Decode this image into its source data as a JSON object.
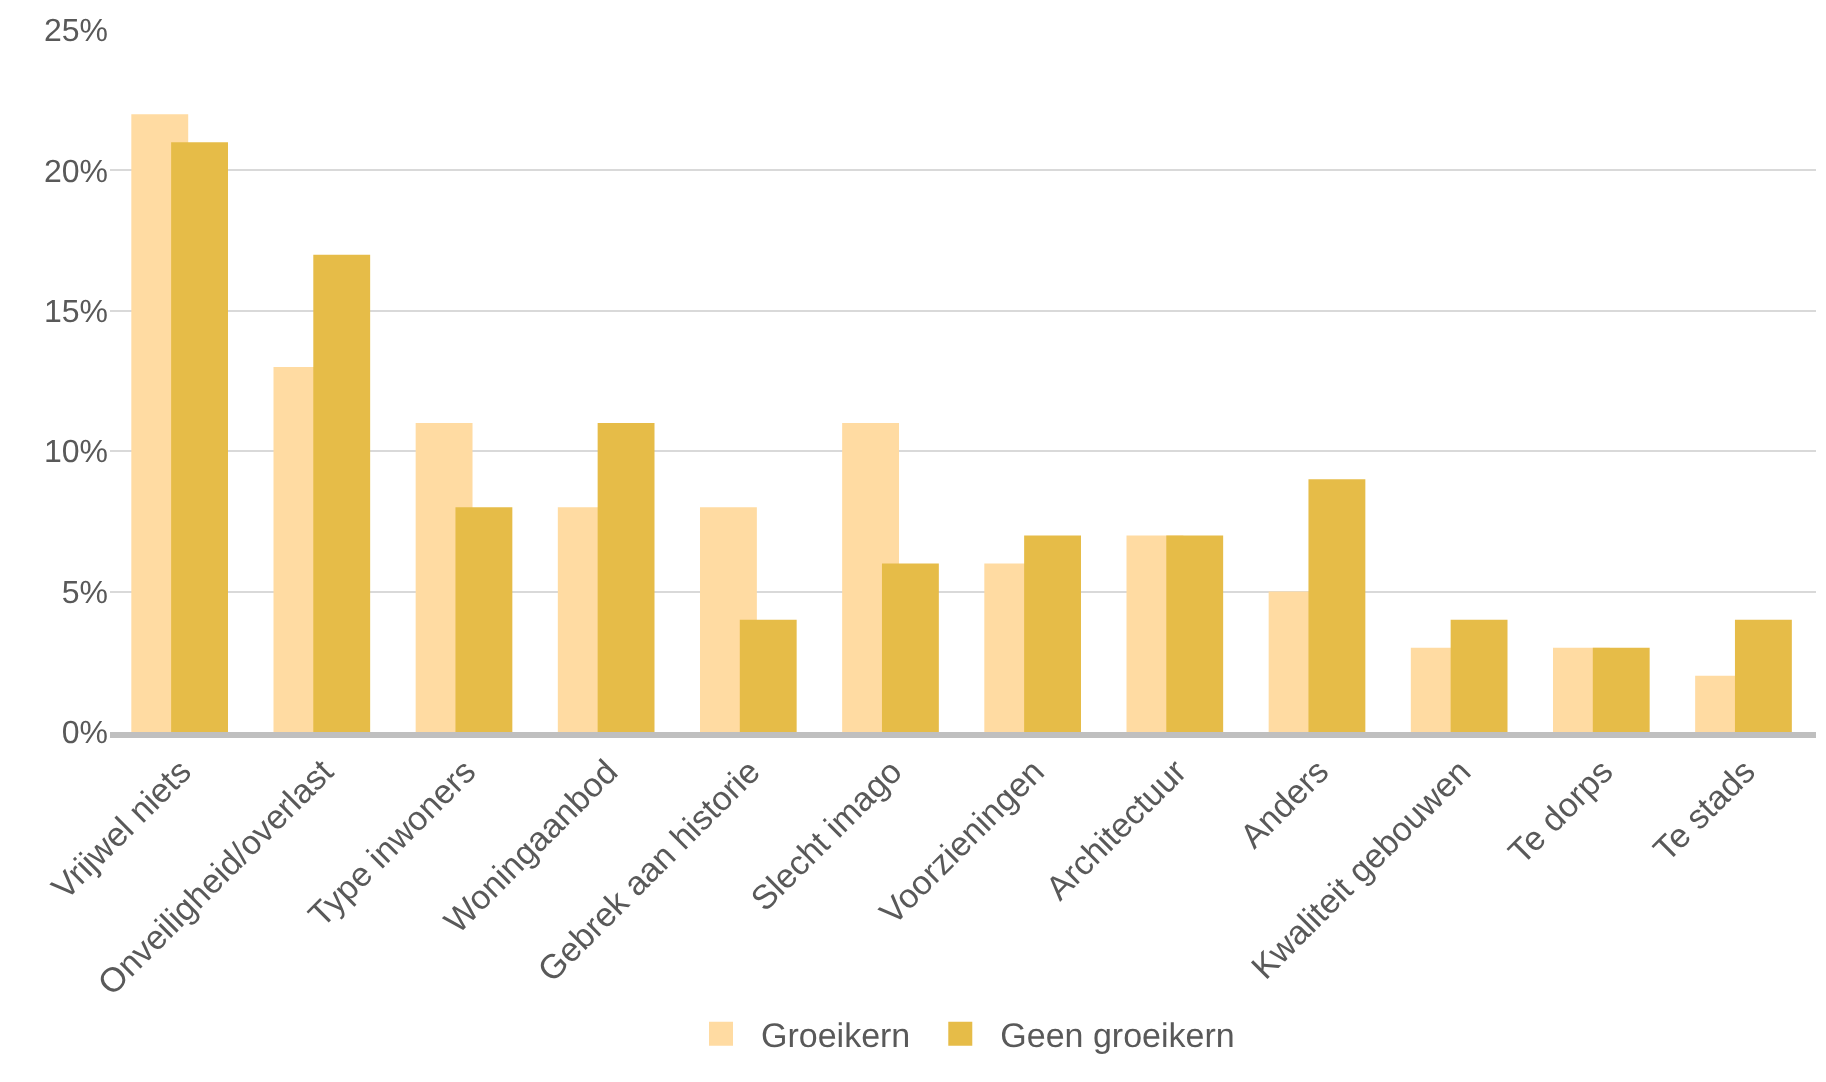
{
  "chart_data": {
    "type": "bar",
    "categories": [
      "Vrijwel niets",
      "Onveiligheid/overlast",
      "Type inwoners",
      "Woningaanbod",
      "Gebrek aan historie",
      "Slecht imago",
      "Voorzieningen",
      "Architectuur",
      "Anders",
      "Kwaliteit gebouwen",
      "Te dorps",
      "Te stads"
    ],
    "series": [
      {
        "name": "Groeikern",
        "color": "#ffdba2",
        "values": [
          22,
          13,
          11,
          8,
          8,
          11,
          6,
          7,
          5,
          3,
          3,
          2
        ]
      },
      {
        "name": "Geen groeikern",
        "color": "#e6bc48",
        "values": [
          21,
          17,
          8,
          11,
          4,
          6,
          7,
          7,
          9,
          4,
          3,
          4
        ]
      }
    ],
    "ylim": [
      0,
      25
    ],
    "yticks": [
      {
        "value": 0,
        "label": "0%"
      },
      {
        "value": 5,
        "label": "5%"
      },
      {
        "value": 10,
        "label": "10%"
      },
      {
        "value": 15,
        "label": "15%"
      },
      {
        "value": 20,
        "label": "20%"
      },
      {
        "value": 25,
        "label": "25%"
      }
    ],
    "grid": "y",
    "legend": "bottom"
  }
}
